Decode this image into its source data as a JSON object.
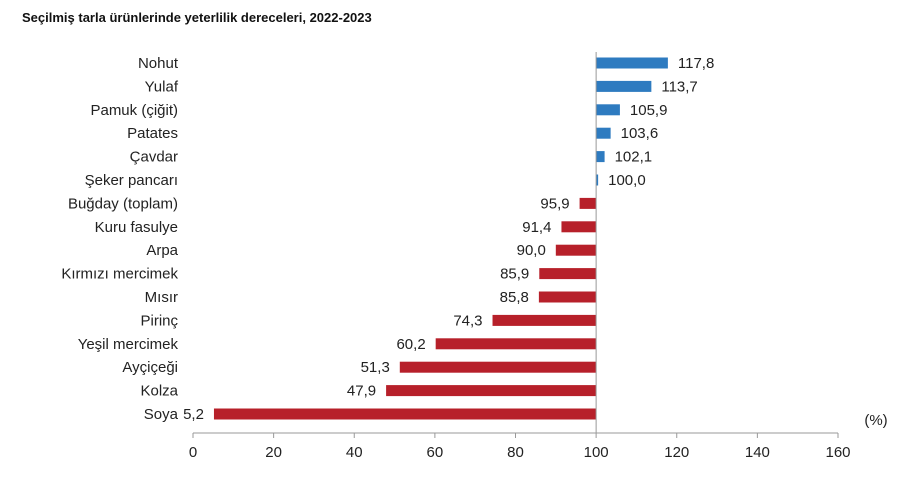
{
  "title": "Seçilmiş tarla ürünlerinde yeterlilik dereceleri, 2022-2023",
  "colors": {
    "above": "#2E7BC0",
    "below": "#B7202A",
    "axis": "#999999"
  },
  "chart_data": {
    "type": "bar",
    "orientation": "horizontal",
    "title": "Seçilmiş tarla ürünlerinde yeterlilik dereceleri, 2022-2023",
    "unit_label": "(%)",
    "baseline": 100,
    "xlim": [
      0,
      160
    ],
    "x_ticks": [
      0,
      20,
      40,
      60,
      80,
      100,
      120,
      140,
      160
    ],
    "x_tick_labels": [
      "0",
      "20",
      "40",
      "60",
      "80",
      "100",
      "120",
      "140",
      "160"
    ],
    "grid": false,
    "categories": [
      "Nohut",
      "Yulaf",
      "Pamuk (çiğit)",
      "Patates",
      "Çavdar",
      "Şeker pancarı",
      "Buğday (toplam)",
      "Kuru fasulye",
      "Arpa",
      "Kırmızı mercimek",
      "Mısır",
      "Pirinç",
      "Yeşil mercimek",
      "Ayçiçeği",
      "Kolza",
      "Soya"
    ],
    "values": [
      117.8,
      113.7,
      105.9,
      103.6,
      102.1,
      100.0,
      95.9,
      91.4,
      90.0,
      85.9,
      85.8,
      74.3,
      60.2,
      51.3,
      47.9,
      5.2
    ],
    "value_labels": [
      "117,8",
      "113,7",
      "105,9",
      "103,6",
      "102,1",
      "100,0",
      "95,9",
      "91,4",
      "90,0",
      "85,9",
      "85,8",
      "74,3",
      "60,2",
      "51,3",
      "47,9",
      "5,2"
    ]
  }
}
